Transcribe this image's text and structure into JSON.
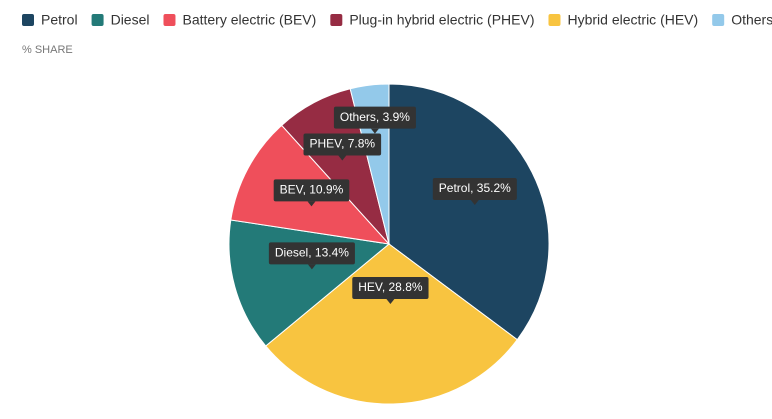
{
  "chart_data": {
    "type": "pie",
    "subtitle": "% SHARE",
    "legend": [
      {
        "name": "Petrol",
        "color": "#1d4561"
      },
      {
        "name": "Diesel",
        "color": "#237a78"
      },
      {
        "name": "Battery electric (BEV)",
        "color": "#ef4f5b"
      },
      {
        "name": "Plug-in hybrid electric (PHEV)",
        "color": "#962c43"
      },
      {
        "name": "Hybrid electric (HEV)",
        "color": "#f8c440"
      },
      {
        "name": "Others",
        "color": "#93c9ea"
      }
    ],
    "values": [
      35.2,
      28.8,
      13.4,
      10.9,
      7.8,
      3.9
    ],
    "value_labels": [
      "Petrol, 35.2%",
      "HEV, 28.8%",
      "Diesel, 13.4%",
      "BEV, 10.9%",
      "PHEV, 7.8%",
      "Others, 3.9%"
    ],
    "colors": [
      "#1d4561",
      "#f8c440",
      "#237a78",
      "#ef4f5b",
      "#962c43",
      "#93c9ea"
    ]
  }
}
